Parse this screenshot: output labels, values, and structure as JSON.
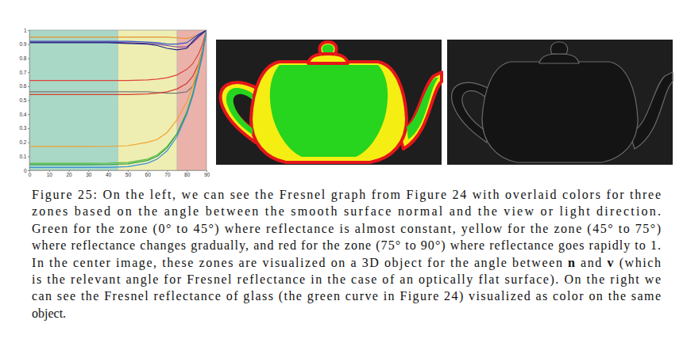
{
  "chart_data": {
    "type": "line",
    "x": [
      0,
      10,
      20,
      30,
      40,
      50,
      60,
      65,
      70,
      75,
      80,
      83,
      86,
      88,
      90
    ],
    "xlim": [
      0,
      90
    ],
    "xticks": [
      0,
      10,
      20,
      30,
      40,
      50,
      60,
      70,
      80,
      90
    ],
    "ylim": [
      0,
      1
    ],
    "yticks": [
      0,
      0.1,
      0.2,
      0.3,
      0.4,
      0.5,
      0.6,
      0.7,
      0.8,
      0.9,
      1
    ],
    "zones": [
      {
        "x0": 0,
        "x1": 45,
        "color": "#a9d9c6"
      },
      {
        "x0": 45,
        "x1": 75,
        "color": "#eeeeb2"
      },
      {
        "x0": 75,
        "x1": 90,
        "color": "#eab2aa"
      }
    ],
    "series": [
      {
        "color": "#e8922e",
        "values": [
          0.95,
          0.95,
          0.95,
          0.95,
          0.95,
          0.95,
          0.95,
          0.95,
          0.95,
          0.945,
          0.94,
          0.95,
          0.97,
          0.98,
          1
        ]
      },
      {
        "color": "#3355cc",
        "values": [
          0.92,
          0.92,
          0.92,
          0.92,
          0.92,
          0.92,
          0.915,
          0.91,
          0.9,
          0.9,
          0.91,
          0.94,
          0.97,
          0.985,
          1
        ]
      },
      {
        "color": "#7a3f9a",
        "values": [
          0.915,
          0.915,
          0.915,
          0.915,
          0.915,
          0.91,
          0.905,
          0.9,
          0.89,
          0.88,
          0.88,
          0.91,
          0.95,
          0.975,
          1
        ]
      },
      {
        "color": "#1a237e",
        "values": [
          0.91,
          0.91,
          0.91,
          0.91,
          0.91,
          0.905,
          0.9,
          0.89,
          0.87,
          0.86,
          0.87,
          0.92,
          0.96,
          0.98,
          1
        ]
      },
      {
        "color": "#e0443a",
        "values": [
          0.64,
          0.64,
          0.64,
          0.64,
          0.64,
          0.64,
          0.645,
          0.65,
          0.66,
          0.68,
          0.72,
          0.76,
          0.83,
          0.9,
          1
        ]
      },
      {
        "color": "#777777",
        "values": [
          0.56,
          0.56,
          0.56,
          0.56,
          0.56,
          0.56,
          0.56,
          0.555,
          0.55,
          0.55,
          0.56,
          0.6,
          0.7,
          0.82,
          1
        ]
      },
      {
        "color": "#d23b2f",
        "values": [
          0.54,
          0.54,
          0.54,
          0.54,
          0.54,
          0.54,
          0.545,
          0.55,
          0.56,
          0.58,
          0.62,
          0.67,
          0.76,
          0.86,
          1
        ]
      },
      {
        "color": "#f0a030",
        "values": [
          0.17,
          0.17,
          0.17,
          0.17,
          0.171,
          0.175,
          0.2,
          0.22,
          0.27,
          0.36,
          0.49,
          0.6,
          0.75,
          0.86,
          1
        ]
      },
      {
        "color": "#5cbf3f",
        "values": [
          0.05,
          0.05,
          0.05,
          0.05,
          0.051,
          0.056,
          0.08,
          0.11,
          0.17,
          0.26,
          0.42,
          0.55,
          0.71,
          0.85,
          1
        ]
      },
      {
        "color": "#2e9e4a",
        "values": [
          0.04,
          0.04,
          0.04,
          0.04,
          0.041,
          0.046,
          0.07,
          0.1,
          0.16,
          0.26,
          0.41,
          0.54,
          0.71,
          0.84,
          1
        ]
      },
      {
        "color": "#3a8fd8",
        "values": [
          0.02,
          0.02,
          0.02,
          0.02,
          0.021,
          0.026,
          0.05,
          0.08,
          0.14,
          0.24,
          0.4,
          0.53,
          0.7,
          0.84,
          1
        ]
      }
    ]
  },
  "caption": {
    "lines": [
      [
        {
          "text": "Figure 25: On the left, we can see the Fresnel graph from Figure 24 with overlaid colors for three"
        }
      ],
      [
        {
          "text": "zones based on the angle between the smooth surface normal and the view or light direction."
        }
      ],
      [
        {
          "text": "Green for the zone (0° to 45°) where reflectance is almost constant, yellow for the zone (45° to 75°)"
        }
      ],
      [
        {
          "text": "where reflectance changes gradually, and red for the zone (75° to 90°) where reflectance goes rapidly to 1."
        }
      ],
      [
        {
          "text": "In the center image, these zones are visualized on a 3D object for the angle between "
        },
        {
          "text": "n",
          "bold": true
        },
        {
          "text": " and "
        },
        {
          "text": "v",
          "bold": true
        },
        {
          "text": " (which"
        }
      ],
      [
        {
          "text": "is the relevant angle for Fresnel reflectance in the case of an optically flat surface). On the right we"
        }
      ],
      [
        {
          "text": "can see the Fresnel reflectance of glass (the green curve in Figure 24) visualized as color on the same"
        }
      ],
      [
        {
          "text": "object."
        }
      ]
    ]
  }
}
